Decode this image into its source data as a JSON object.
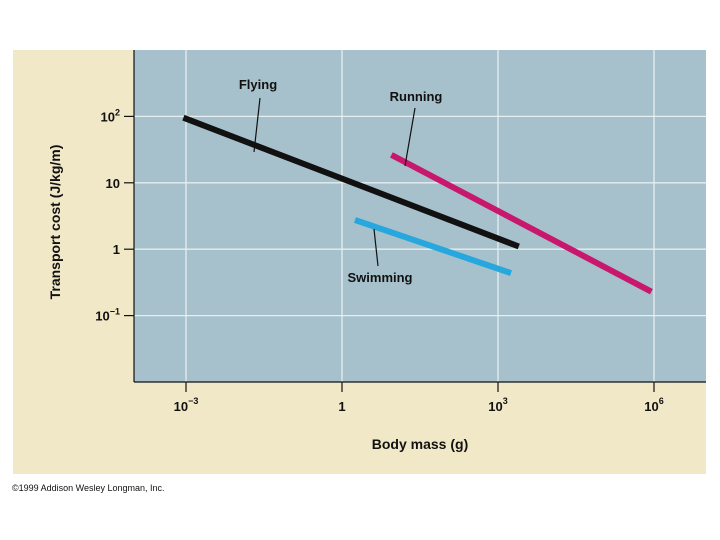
{
  "chart_data": {
    "type": "line",
    "xscale": "log",
    "yscale": "log",
    "xlim_log10": [
      -4,
      7
    ],
    "ylim_log10": [
      -2,
      3
    ],
    "xlabel": "Body mass (g)",
    "ylabel": "Transport cost  (J/kg/m)",
    "x_ticks": [
      {
        "value_log10": -3,
        "base": "10",
        "exp": "−3"
      },
      {
        "value_log10": 0,
        "base": "1",
        "exp": ""
      },
      {
        "value_log10": 3,
        "base": "10",
        "exp": "3"
      },
      {
        "value_log10": 6,
        "base": "10",
        "exp": "6"
      }
    ],
    "y_ticks": [
      {
        "value_log10": 2,
        "base": "10",
        "exp": "2"
      },
      {
        "value_log10": 1,
        "base": "10",
        "exp": ""
      },
      {
        "value_log10": 0,
        "base": "1",
        "exp": ""
      },
      {
        "value_log10": -1,
        "base": "10",
        "exp": "−1"
      }
    ],
    "grid": true,
    "series": [
      {
        "name": "Flying",
        "color": "#111111",
        "x_log10": [
          -3.05,
          3.4
        ],
        "y_log10": [
          1.98,
          0.04
        ]
      },
      {
        "name": "Running",
        "color": "#c8186e",
        "x_log10": [
          0.95,
          5.95
        ],
        "y_log10": [
          1.42,
          -0.64
        ]
      },
      {
        "name": "Swimming",
        "color": "#26a8de",
        "x_log10": [
          0.25,
          3.25
        ],
        "y_log10": [
          0.44,
          -0.36
        ]
      }
    ]
  },
  "copyright": "©1999 Addison Wesley Longman, Inc."
}
